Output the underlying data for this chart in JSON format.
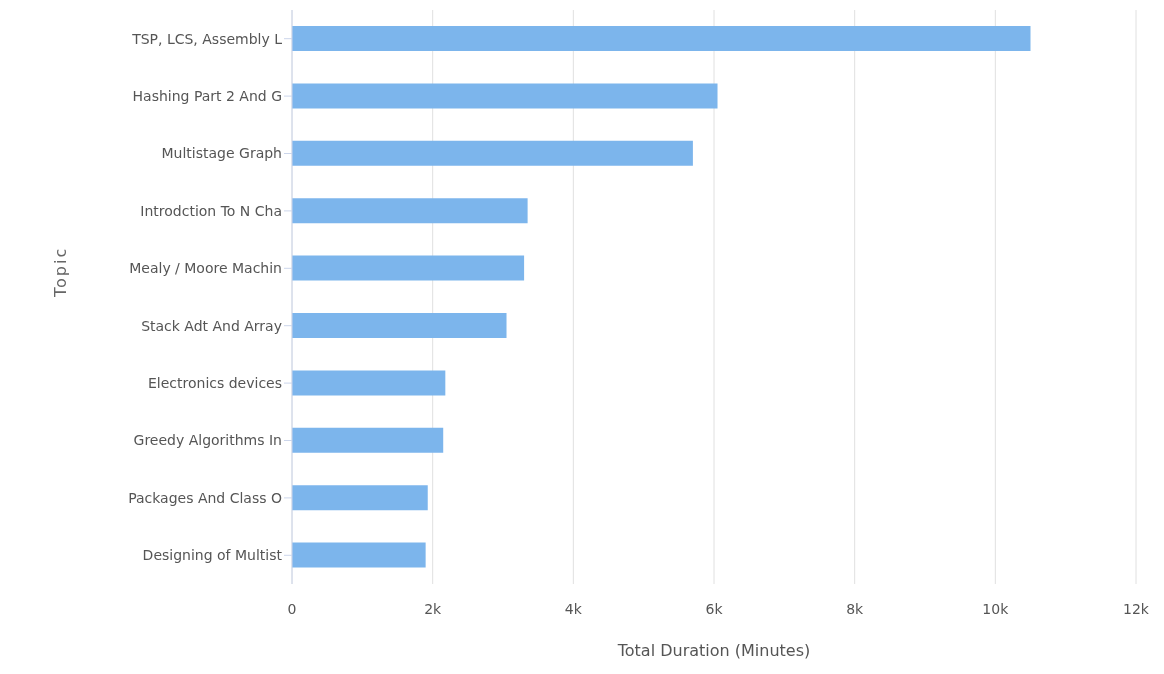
{
  "chart_data": {
    "type": "bar",
    "orientation": "horizontal",
    "xlabel": "Total Duration (Minutes)",
    "ylabel": "Topic",
    "categories": [
      "TSP, LCS, Assembly L",
      "Hashing Part 2 And G",
      "Multistage Graph",
      "Introdction To N Cha",
      "Mealy / Moore Machin",
      "Stack Adt And Array",
      "Electronics devices",
      "Greedy Algorithms In",
      "Packages And Class O",
      "Designing of Multist"
    ],
    "values": [
      10500,
      6050,
      5700,
      3350,
      3300,
      3050,
      2180,
      2150,
      1930,
      1900
    ],
    "color": "#7cb5ec",
    "xlim": [
      0,
      12000
    ],
    "xticks": [
      0,
      {
        "value": 2000,
        "label": "2k"
      },
      {
        "value": 4000,
        "label": "4k"
      },
      {
        "value": 6000,
        "label": "6k"
      },
      {
        "value": 8000,
        "label": "8k"
      },
      {
        "value": 10000,
        "label": "10k"
      },
      {
        "value": 12000,
        "label": "12k"
      }
    ],
    "grid": "x"
  }
}
